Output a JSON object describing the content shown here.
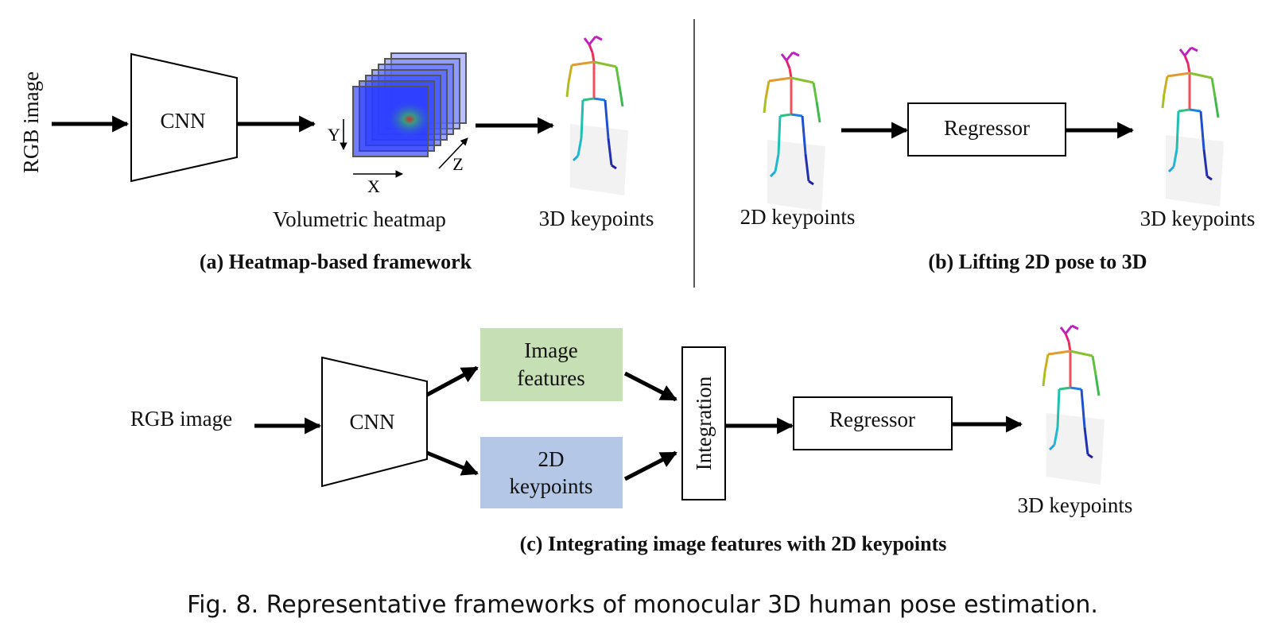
{
  "panel_a": {
    "input_label": "RGB image",
    "model_label": "CNN",
    "axis_y": "Y",
    "axis_x": "X",
    "axis_z": "Z",
    "heatmap_label": "Volumetric heatmap",
    "output_label": "3D keypoints",
    "subtitle": "(a) Heatmap-based framework"
  },
  "panel_b": {
    "input_label": "2D keypoints",
    "model_label": "Regressor",
    "output_label": "3D keypoints",
    "subtitle": "(b) Lifting 2D pose to 3D"
  },
  "panel_c": {
    "input_label": "RGB image",
    "model_label": "CNN",
    "features_line1": "Image",
    "features_line2": "features",
    "keypoints_line1": "2D",
    "keypoints_line2": "keypoints",
    "integration_label": "Integration",
    "regressor_label": "Regressor",
    "output_label": "3D keypoints",
    "subtitle": "(c) Integrating image features with 2D keypoints"
  },
  "caption": "Fig. 8.  Representative frameworks of monocular 3D human pose estimation.",
  "colors": {
    "image_features_box": "#c6dfb4",
    "keypoints_box": "#b4c7e7",
    "heatmap_blue": "#2f3fff"
  }
}
